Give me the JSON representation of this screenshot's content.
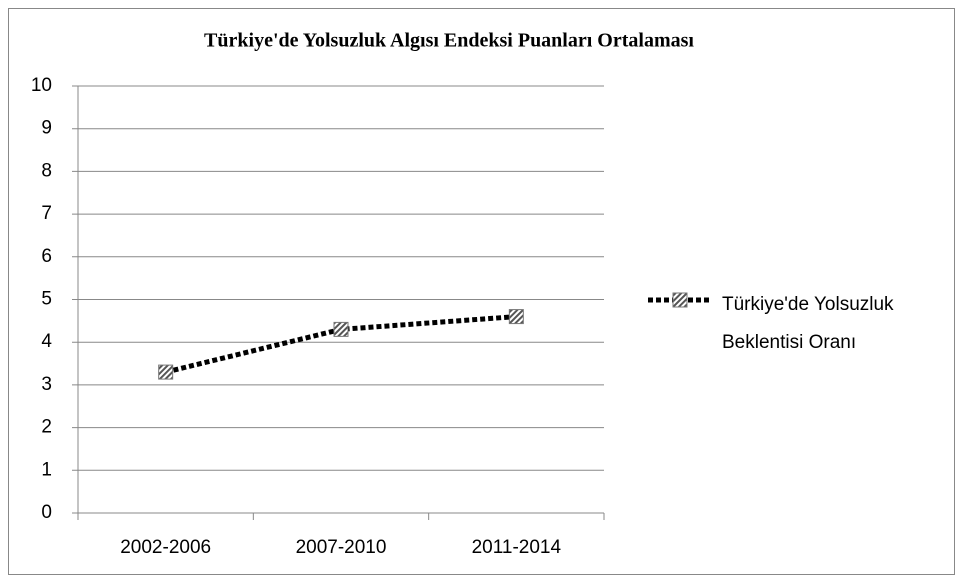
{
  "chart_data": {
    "type": "line",
    "title": "Türkiye'de Yolsuzluk Algısı Endeksi Puanları Ortalaması",
    "categories": [
      "2002-2006",
      "2007-2010",
      "2011-2014"
    ],
    "series": [
      {
        "name": "Türkiye'de Yolsuzluk Beklentisi Oranı",
        "color": "#000000",
        "values": [
          3.3,
          4.3,
          4.6
        ]
      }
    ],
    "ylim": [
      0,
      10
    ],
    "yticks": [
      0,
      1,
      2,
      3,
      4,
      5,
      6,
      7,
      8,
      9,
      10
    ],
    "grid": true,
    "legend": "right"
  }
}
